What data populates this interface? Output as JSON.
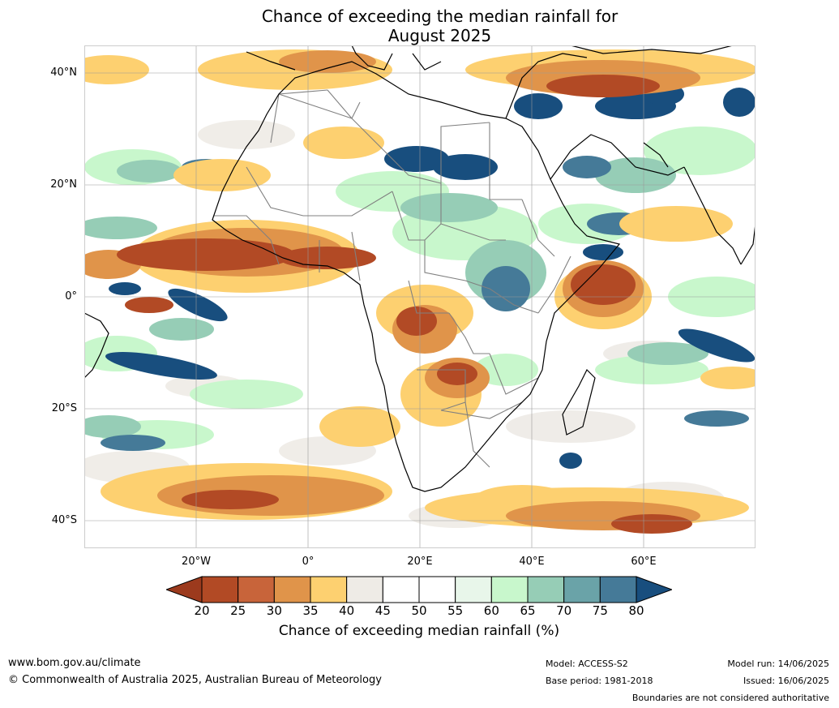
{
  "title": {
    "line1": "Chance of exceeding the median rainfall for",
    "line2": "August 2025"
  },
  "map": {
    "lat_labels": [
      "40°N",
      "20°N",
      "0°",
      "20°S",
      "40°S"
    ],
    "lon_labels": [
      "20°W",
      "0°",
      "20°E",
      "40°E",
      "60°E"
    ],
    "colors": {
      "ocean_base": "#ffffff",
      "land_base": "#ffffff",
      "coast": "#000000",
      "border": "#808080",
      "grid": "#999999"
    }
  },
  "colorbar": {
    "ticks": [
      "20",
      "25",
      "30",
      "35",
      "40",
      "45",
      "50",
      "55",
      "60",
      "65",
      "70",
      "75",
      "80"
    ],
    "colors": [
      "#9c3a1d",
      "#b24a25",
      "#c8643a",
      "#e0944a",
      "#fdd070",
      "#eeebe6",
      "#ffffff",
      "#ffffff",
      "#e8f6ea",
      "#c8f7cc",
      "#96cdb6",
      "#6aa3a8",
      "#457a98",
      "#184e7e"
    ],
    "label": "Chance of exceeding median rainfall (%)"
  },
  "footer": {
    "website": "www.bom.gov.au/climate",
    "copyright": "© Commonwealth of Australia 2025, Australian Bureau of Meteorology",
    "model": "Model: ACCESS-S2",
    "base_period": "Base period: 1981-2018",
    "model_run": "Model run: 14/06/2025",
    "issued": "Issued: 16/06/2025",
    "disclaimer": "Boundaries are not considered authoritative"
  }
}
